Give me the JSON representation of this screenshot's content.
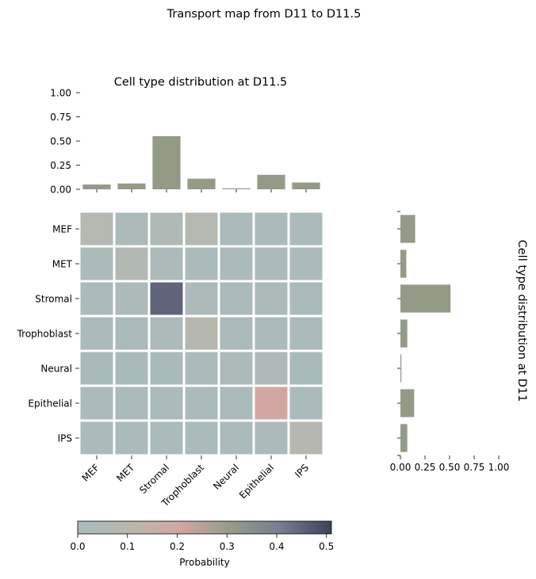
{
  "figure": {
    "suptitle": "Transport map from D11 to D11.5"
  },
  "chart_data": [
    {
      "type": "bar",
      "title": "Cell type distribution at D11.5",
      "orientation": "vertical",
      "categories": [
        "MEF",
        "MET",
        "Stromal",
        "Trophoblast",
        "Neural",
        "Epithelial",
        "IPS"
      ],
      "values": [
        0.05,
        0.06,
        0.55,
        0.11,
        0.01,
        0.15,
        0.07
      ],
      "ylim": [
        0,
        1
      ],
      "yticks": [
        "0.00",
        "0.25",
        "0.50",
        "0.75",
        "1.00"
      ],
      "grid": false,
      "color": "#939b87"
    },
    {
      "type": "heatmap",
      "rows": [
        "MEF",
        "MET",
        "Stromal",
        "Trophoblast",
        "Neural",
        "Epithelial",
        "IPS"
      ],
      "columns": [
        "MEF",
        "MET",
        "Stromal",
        "Trophoblast",
        "Neural",
        "Epithelial",
        "IPS"
      ],
      "values": [
        [
          0.07,
          0.02,
          0.04,
          0.07,
          0.01,
          0.01,
          0.01
        ],
        [
          0.01,
          0.06,
          0.02,
          0.01,
          0.01,
          0.01,
          0.01
        ],
        [
          0.01,
          0.02,
          0.45,
          0.02,
          0.01,
          0.02,
          0.01
        ],
        [
          0.01,
          0.01,
          0.02,
          0.08,
          0.01,
          0.01,
          0.01
        ],
        [
          0.0,
          0.0,
          0.0,
          0.01,
          0.02,
          0.03,
          0.0
        ],
        [
          0.01,
          0.01,
          0.01,
          0.01,
          0.01,
          0.2,
          0.01
        ],
        [
          0.01,
          0.01,
          0.01,
          0.01,
          0.01,
          0.01,
          0.08
        ]
      ],
      "vmin": 0,
      "vmax": 0.51
    },
    {
      "type": "bar",
      "orientation": "horizontal",
      "categories": [
        "MEF",
        "MET",
        "Stromal",
        "Trophoblast",
        "Neural",
        "Epithelial",
        "IPS"
      ],
      "values": [
        0.15,
        0.06,
        0.51,
        0.07,
        0.01,
        0.14,
        0.07
      ],
      "xlim": [
        0,
        1
      ],
      "xticks": [
        "0.00",
        "0.25",
        "0.50",
        "0.75",
        "1.00"
      ],
      "ylabel": "Cell type distribution at D11",
      "grid": false,
      "color": "#939b87"
    }
  ],
  "colorbar": {
    "label": "Probability",
    "ticks": [
      "0.0",
      "0.1",
      "0.2",
      "0.3",
      "0.4",
      "0.5"
    ],
    "tick_values": [
      0,
      0.1,
      0.2,
      0.3,
      0.4,
      0.5
    ],
    "vmin": 0,
    "vmax": 0.51,
    "colors": [
      "#a9babd",
      "#b9b8ac",
      "#d3a6a2",
      "#969c88",
      "#787c92",
      "#3c4258"
    ]
  }
}
